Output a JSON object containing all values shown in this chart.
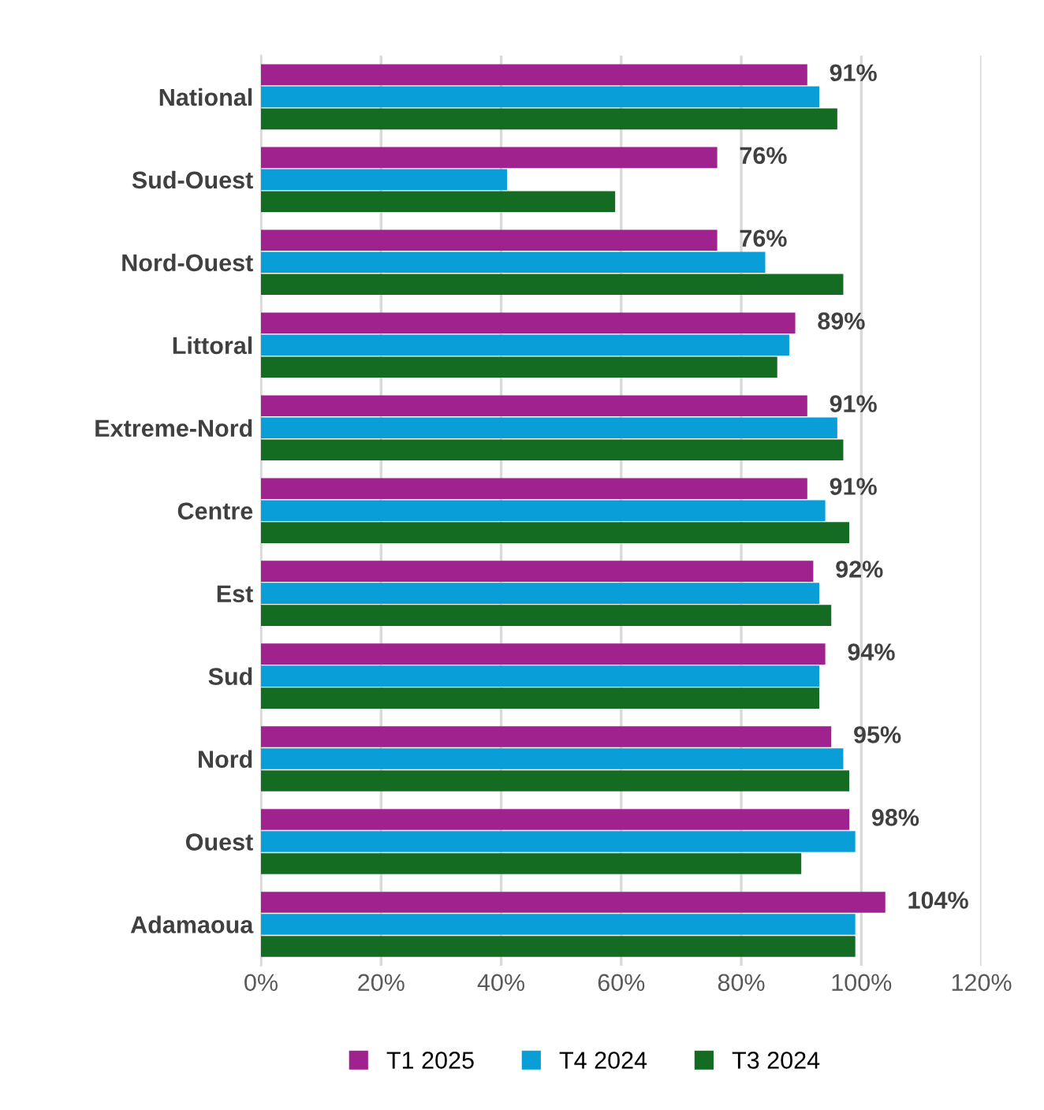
{
  "chart_data": {
    "type": "bar",
    "orientation": "horizontal",
    "categories": [
      "National",
      "Sud-Ouest",
      "Nord-Ouest",
      "Littoral",
      "Extreme-Nord",
      "Centre",
      "Est",
      "Sud",
      "Nord",
      "Ouest",
      "Adamaoua"
    ],
    "series": [
      {
        "name": "T1 2025",
        "color": "#a0228f",
        "values": [
          91,
          76,
          76,
          89,
          91,
          91,
          92,
          94,
          95,
          98,
          104
        ],
        "value_labels": [
          "91%",
          "76%",
          "76%",
          "89%",
          "91%",
          "91%",
          "92%",
          "94%",
          "95%",
          "98%",
          "104%"
        ]
      },
      {
        "name": "T4 2024",
        "color": "#0a9ed8",
        "values": [
          93,
          41,
          84,
          88,
          96,
          94,
          93,
          93,
          97,
          99,
          99
        ]
      },
      {
        "name": "T3 2024",
        "color": "#146b22",
        "values": [
          96,
          59,
          97,
          86,
          97,
          98,
          95,
          93,
          98,
          90,
          99
        ]
      }
    ],
    "xlim": [
      0,
      120
    ],
    "xticks": [
      {
        "value": 0,
        "label": "0%"
      },
      {
        "value": 20,
        "label": "20%"
      },
      {
        "value": 40,
        "label": "40%"
      },
      {
        "value": 60,
        "label": "60%"
      },
      {
        "value": 80,
        "label": "80%"
      },
      {
        "value": 100,
        "label": "100%"
      },
      {
        "value": 120,
        "label": "120%"
      }
    ],
    "grid": "x",
    "legend": "bottom"
  }
}
